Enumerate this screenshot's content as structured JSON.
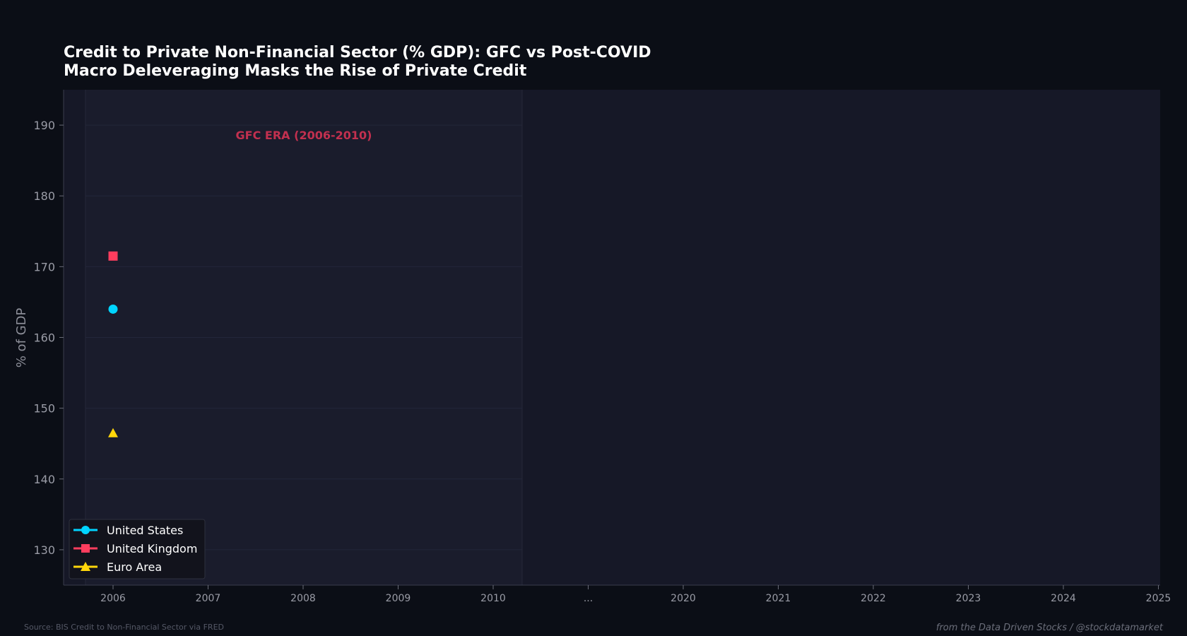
{
  "chart_data": {
    "type": "scatter",
    "title_line1": "Credit to Private Non-Financial Sector (% GDP): GFC vs Post-COVID",
    "title_line2": "Macro Deleveraging Masks the Rise of Private Credit",
    "xlabel": "",
    "ylabel": "% of GDP",
    "ylim": [
      125,
      195
    ],
    "y_ticks": [
      130,
      140,
      150,
      160,
      170,
      180,
      190
    ],
    "x_ticks": [
      "2006",
      "2007",
      "2008",
      "2009",
      "2010",
      "...",
      "2020",
      "2021",
      "2022",
      "2023",
      "2024",
      "2025"
    ],
    "grid": true,
    "legend_position": "bottom-left",
    "series": [
      {
        "name": "United States",
        "marker": "circle",
        "color": "#00d4ff",
        "points": [
          {
            "x": "2006",
            "y": 164
          }
        ]
      },
      {
        "name": "United Kingdom",
        "marker": "square",
        "color": "#ff3d5e",
        "points": [
          {
            "x": "2006",
            "y": 171.5
          }
        ]
      },
      {
        "name": "Euro Area",
        "marker": "triangle",
        "color": "#ffd60a",
        "points": [
          {
            "x": "2006",
            "y": 146.5
          }
        ]
      }
    ],
    "annotations": [
      {
        "text": "GFC ERA (2006-2010)",
        "color": "#c2304f"
      }
    ],
    "source": "Source: BIS Credit to Non-Financial Sector via FRED",
    "credit": "from the Data Driven Stocks / @stockdatamarket"
  },
  "colors": {
    "page_bg": "#0b0e16",
    "plot_bg": "#161827",
    "axis": "#3a3d4c",
    "tick_text": "#9a9ca6",
    "title": "#ffffff"
  }
}
